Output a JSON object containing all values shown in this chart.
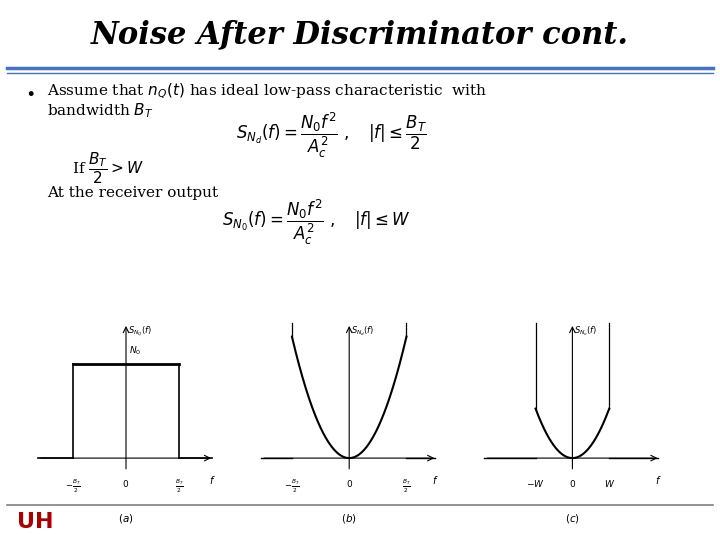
{
  "title": "Noise After Discriminator cont.",
  "title_fontstyle": "italic",
  "title_fontweight": "bold",
  "title_fontsize": 22,
  "title_fontfamily": "serif",
  "bg_color": "#ffffff",
  "header_line_color1": "#4472c4",
  "header_line_color2": "#4472c4",
  "footer_line_color": "#808080",
  "text_fontsize": 11,
  "formula_fontsize": 12
}
